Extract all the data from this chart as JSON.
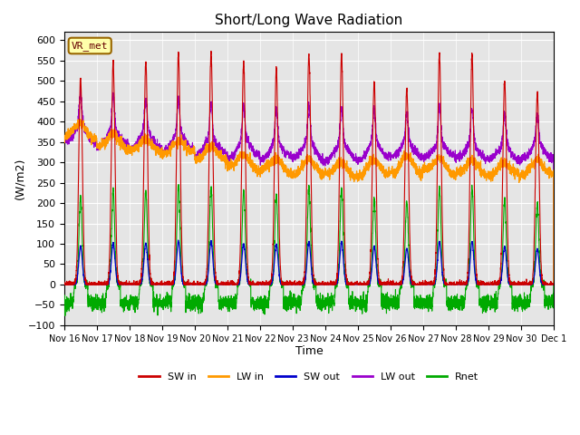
{
  "title": "Short/Long Wave Radiation",
  "xlabel": "Time",
  "ylabel": "(W/m2)",
  "ylim": [
    -100,
    620
  ],
  "yticks": [
    -100,
    -50,
    0,
    50,
    100,
    150,
    200,
    250,
    300,
    350,
    400,
    450,
    500,
    550,
    600
  ],
  "xtick_labels": [
    "Nov 16",
    "Nov 17",
    "Nov 18",
    "Nov 19",
    "Nov 20",
    "Nov 21",
    "Nov 22",
    "Nov 23",
    "Nov 24",
    "Nov 25",
    "Nov 26",
    "Nov 27",
    "Nov 28",
    "Nov 29",
    "Nov 30",
    "Dec 1"
  ],
  "station_label": "VR_met",
  "colors": {
    "SW_in": "#cc0000",
    "LW_in": "#ff9900",
    "SW_out": "#0000cc",
    "LW_out": "#9900cc",
    "Rnet": "#00aa00"
  },
  "legend_labels": [
    "SW in",
    "LW in",
    "SW out",
    "LW out",
    "Rnet"
  ],
  "bg_color": "#e5e5e5",
  "fig_bg": "#ffffff",
  "n_days": 15,
  "points_per_day": 288,
  "sw_peaks": [
    510,
    548,
    548,
    570,
    568,
    548,
    530,
    565,
    565,
    500,
    480,
    565,
    565,
    500,
    470
  ],
  "lw_in_base": [
    360,
    335,
    325,
    320,
    305,
    285,
    275,
    270,
    265,
    270,
    275,
    275,
    270,
    265,
    270
  ],
  "lw_out_night": [
    350,
    340,
    335,
    330,
    320,
    315,
    310,
    310,
    308,
    310,
    312,
    312,
    308,
    305,
    308
  ]
}
